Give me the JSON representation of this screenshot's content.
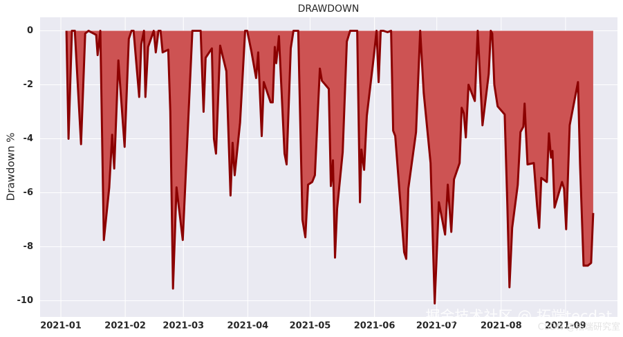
{
  "chart_data": {
    "type": "area-line",
    "title": "DRAWDOWN",
    "y_label": "Drawdown %",
    "x": [
      2.7,
      3.7,
      5.3,
      6.7,
      9.7,
      11.7,
      13.3,
      17,
      17.7,
      19,
      20.7,
      23.3,
      24.7,
      25.7,
      27.7,
      30.7,
      32.7,
      34,
      35,
      37.7,
      38.7,
      40,
      40.7,
      42,
      44.7,
      45.7,
      47,
      48,
      49,
      51.7,
      52.7,
      54,
      55.7,
      58.7,
      63.3,
      67.3,
      68.7,
      69.7,
      72.7,
      73.7,
      74.7,
      76.7,
      79.7,
      81.7,
      82.7,
      83.7,
      86.3,
      88.7,
      89.7,
      91.7,
      94,
      95,
      96.7,
      97.7,
      101,
      102,
      103,
      103.7,
      105,
      107.7,
      108.7,
      110.7,
      112,
      114.3,
      116.3,
      117.7,
      119,
      121,
      122.3,
      124.7,
      125.7,
      129,
      130,
      131,
      132,
      133,
      135.7,
      137.7,
      139.3,
      142.7,
      144,
      144.7,
      146,
      147.3,
      150.3,
      152,
      153,
      154,
      155.3,
      157.3,
      159,
      160,
      161,
      165.3,
      166.3,
      167.3,
      171,
      173,
      174.7,
      178,
      180,
      182,
      185,
      186.3,
      188,
      189.3,
      192,
      193,
      194,
      195,
      196.3,
      199.3,
      200.7,
      201.3,
      203,
      206,
      207,
      207.7,
      208.7,
      210.3,
      213.7,
      215,
      216,
      217.3,
      220,
      221.3,
      222.7,
      223.3,
      224.7,
      227.7,
      229.3,
      230.3,
      231.3,
      234,
      235,
      236,
      236.7,
      237.7,
      241.3,
      242.3,
      243.3,
      245,
      249,
      250,
      251.7,
      253.7,
      255.3,
      256.3
    ],
    "series": [
      {
        "name": "Drawdown",
        "color": "#8b0000",
        "fill": "#cd5353",
        "values": [
          0,
          -4.0,
          0,
          0,
          -4.2,
          -0.1,
          0,
          -0.15,
          -0.9,
          0,
          -7.75,
          -5.8,
          -3.85,
          -5.1,
          -1.1,
          -4.3,
          -0.3,
          0,
          0,
          -2.45,
          -0.5,
          0,
          -2.45,
          -0.6,
          0,
          -0.8,
          0,
          0,
          -0.8,
          -0.7,
          -3.0,
          -9.55,
          -5.8,
          -7.75,
          0,
          0,
          -3.0,
          -1.0,
          -0.65,
          -4.0,
          -4.55,
          -0.55,
          -1.5,
          -6.1,
          -4.15,
          -5.35,
          -3.4,
          0,
          0,
          -0.75,
          -1.75,
          -0.8,
          -3.9,
          -1.9,
          -2.65,
          -2.65,
          -0.6,
          -1.2,
          -0.2,
          -4.55,
          -4.95,
          -0.65,
          0,
          0,
          -7.0,
          -7.65,
          -5.7,
          -5.6,
          -5.35,
          -1.4,
          -1.85,
          -2.15,
          -5.75,
          -4.8,
          -8.4,
          -6.6,
          -4.5,
          -0.4,
          0,
          0,
          -6.35,
          -4.4,
          -5.15,
          -3.15,
          -1.2,
          0,
          -1.9,
          0,
          0,
          -0.05,
          0,
          -3.7,
          -3.9,
          -8.2,
          -8.45,
          -5.85,
          -3.75,
          0,
          -2.3,
          -4.9,
          -10.1,
          -6.35,
          -7.55,
          -5.7,
          -7.45,
          -5.5,
          -4.9,
          -2.85,
          -3.05,
          -3.95,
          -2.0,
          -2.6,
          0,
          -0.9,
          -3.5,
          -1.6,
          0,
          -0.1,
          -2.0,
          -2.8,
          -3.1,
          -6.5,
          -9.5,
          -7.3,
          -5.7,
          -3.75,
          -3.55,
          -2.7,
          -4.95,
          -4.9,
          -6.5,
          -7.3,
          -5.45,
          -5.6,
          -3.8,
          -4.7,
          -4.45,
          -6.55,
          -5.6,
          -5.85,
          -7.35,
          -3.5,
          -1.9,
          -4.95,
          -8.7,
          -8.7,
          -8.6,
          -6.75
        ]
      }
    ],
    "xlim": [
      -10,
      268
    ],
    "ylim": [
      -10.6,
      0.5
    ],
    "xticks": [
      {
        "value": 0,
        "label": "2021-01"
      },
      {
        "value": 31,
        "label": "2021-02"
      },
      {
        "value": 59,
        "label": "2021-03"
      },
      {
        "value": 90,
        "label": "2021-04"
      },
      {
        "value": 120,
        "label": "2021-05"
      },
      {
        "value": 151,
        "label": "2021-06"
      },
      {
        "value": 181,
        "label": "2021-07"
      },
      {
        "value": 212,
        "label": "2021-08"
      },
      {
        "value": 243,
        "label": "2021-09"
      }
    ],
    "yticks": [
      0,
      -2,
      -4,
      -6,
      -8,
      -10
    ],
    "grid": true,
    "watermarks": [
      "掘金技术社区 @ 拓端tecdat",
      "CSDN @拓端研究室"
    ]
  }
}
